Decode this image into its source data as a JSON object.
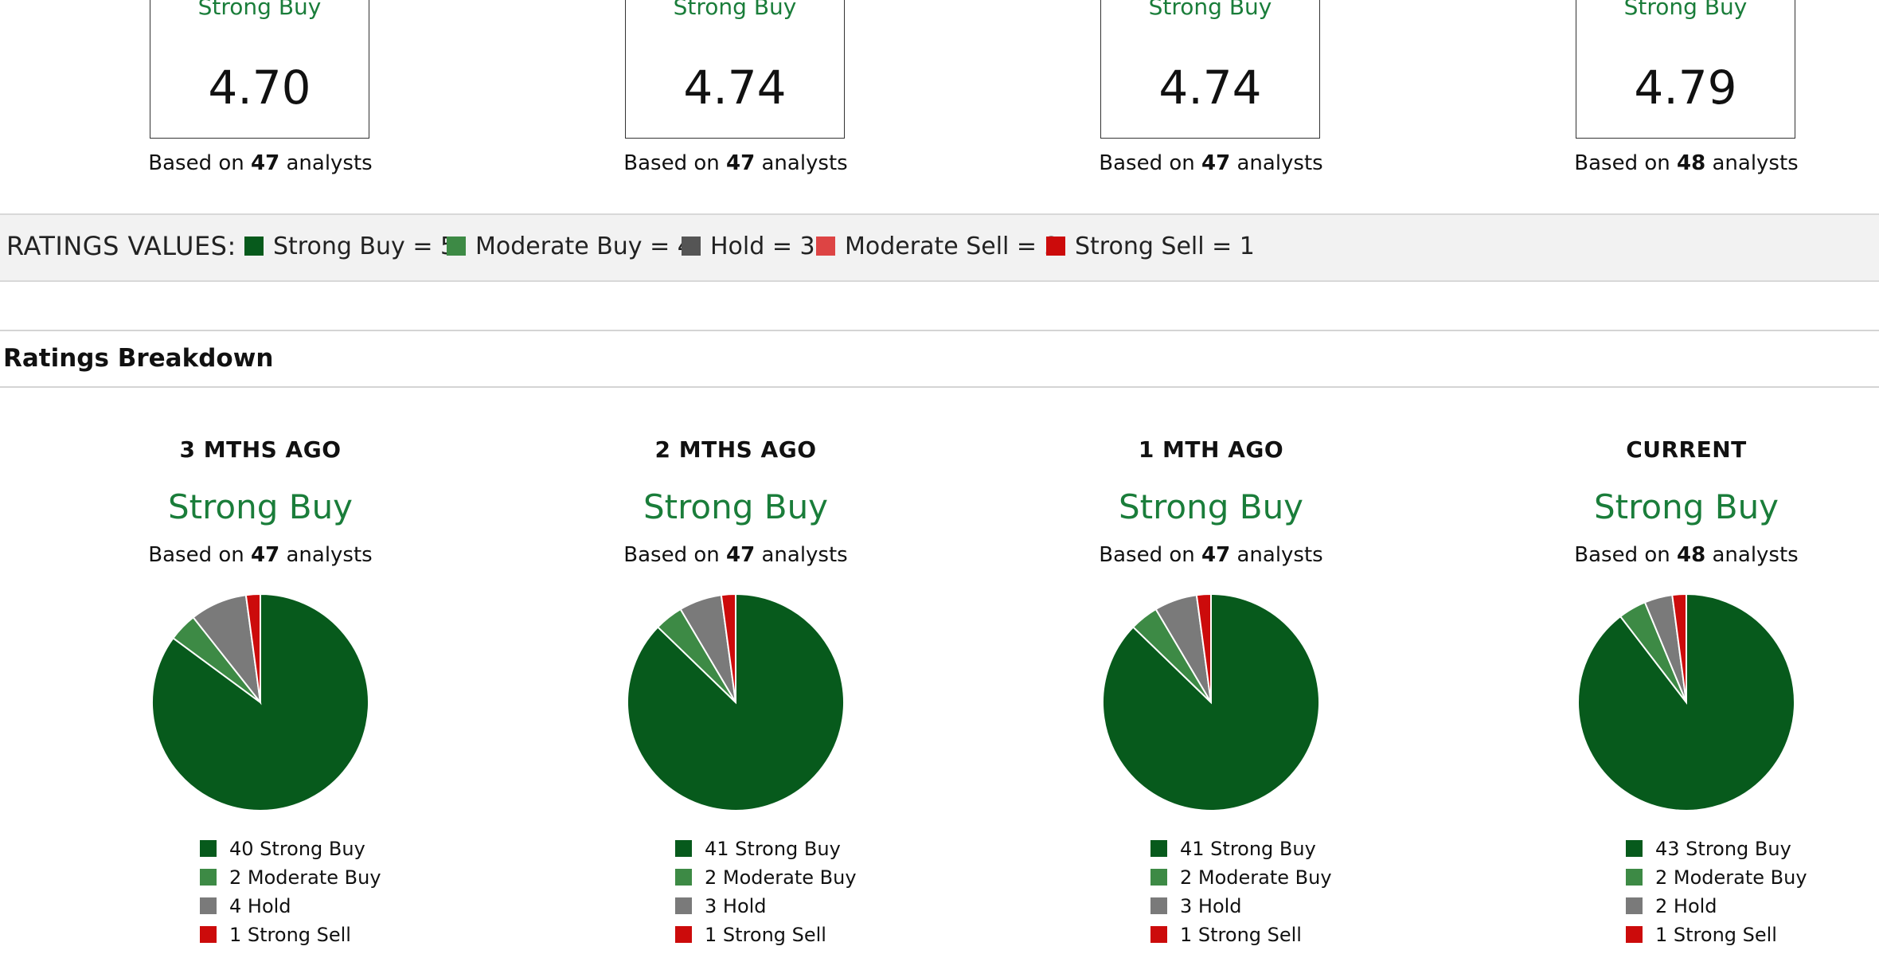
{
  "colors": {
    "strong_buy": "#075a1c",
    "moderate_buy": "#3d8a45",
    "hold": "#7a7a7a",
    "moderate_sell": "#dd4444",
    "strong_sell": "#cc0b0b",
    "rating_text": "#1a7d3a"
  },
  "summary_cards": [
    {
      "rating": "Strong Buy",
      "score": "4.70",
      "based_prefix": "Based on",
      "analysts": "47",
      "based_suffix": "analysts"
    },
    {
      "rating": "Strong Buy",
      "score": "4.74",
      "based_prefix": "Based on",
      "analysts": "47",
      "based_suffix": "analysts"
    },
    {
      "rating": "Strong Buy",
      "score": "4.74",
      "based_prefix": "Based on",
      "analysts": "47",
      "based_suffix": "analysts"
    },
    {
      "rating": "Strong Buy",
      "score": "4.79",
      "based_prefix": "Based on",
      "analysts": "48",
      "based_suffix": "analysts"
    }
  ],
  "ratings_values": {
    "title": "RATINGS VALUES:",
    "items": [
      {
        "label": "Strong Buy = 5",
        "color": "#075a1c"
      },
      {
        "label": "Moderate Buy = 4",
        "color": "#3d8a45"
      },
      {
        "label": "Hold = 3",
        "color": "#555555"
      },
      {
        "label": "Moderate Sell = 2",
        "color": "#dd4444"
      },
      {
        "label": "Strong Sell = 1",
        "color": "#cc0b0b"
      }
    ]
  },
  "breakdown": {
    "title": "Ratings Breakdown",
    "periods": [
      {
        "name": "3 MTHS AGO",
        "rating": "Strong Buy",
        "based_prefix": "Based on",
        "analysts": "47",
        "based_suffix": "analysts",
        "legend": [
          "40 Strong Buy",
          "2 Moderate Buy",
          "4 Hold",
          "1 Strong Sell"
        ]
      },
      {
        "name": "2 MTHS AGO",
        "rating": "Strong Buy",
        "based_prefix": "Based on",
        "analysts": "47",
        "based_suffix": "analysts",
        "legend": [
          "41 Strong Buy",
          "2 Moderate Buy",
          "3 Hold",
          "1 Strong Sell"
        ]
      },
      {
        "name": "1 MTH AGO",
        "rating": "Strong Buy",
        "based_prefix": "Based on",
        "analysts": "47",
        "based_suffix": "analysts",
        "legend": [
          "41 Strong Buy",
          "2 Moderate Buy",
          "3 Hold",
          "1 Strong Sell"
        ]
      },
      {
        "name": "CURRENT",
        "rating": "Strong Buy",
        "based_prefix": "Based on",
        "analysts": "48",
        "based_suffix": "analysts",
        "legend": [
          "43 Strong Buy",
          "2 Moderate Buy",
          "2 Hold",
          "1 Strong Sell"
        ]
      }
    ]
  },
  "chart_data": [
    {
      "type": "pie",
      "categories": [
        "Strong Buy",
        "Moderate Buy",
        "Hold",
        "Strong Sell"
      ],
      "values": [
        40,
        2,
        4,
        1
      ]
    },
    {
      "type": "pie",
      "categories": [
        "Strong Buy",
        "Moderate Buy",
        "Hold",
        "Strong Sell"
      ],
      "values": [
        41,
        2,
        3,
        1
      ]
    },
    {
      "type": "pie",
      "categories": [
        "Strong Buy",
        "Moderate Buy",
        "Hold",
        "Strong Sell"
      ],
      "values": [
        41,
        2,
        3,
        1
      ]
    },
    {
      "type": "pie",
      "categories": [
        "Strong Buy",
        "Moderate Buy",
        "Hold",
        "Strong Sell"
      ],
      "values": [
        43,
        2,
        2,
        1
      ]
    }
  ]
}
